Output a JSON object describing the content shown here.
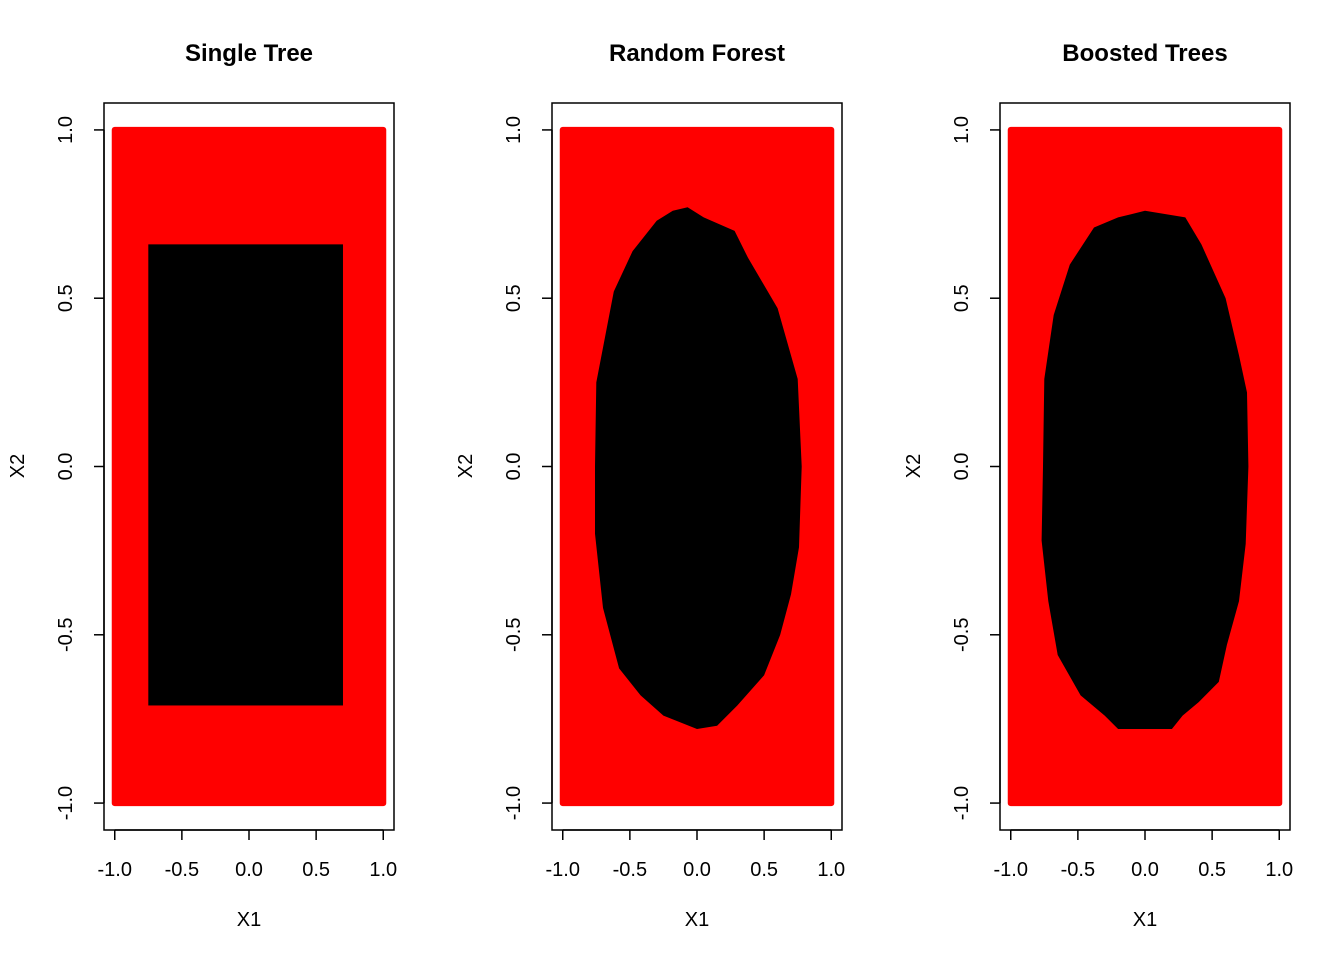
{
  "colors": {
    "class_outside": "#ff0000",
    "class_inside": "#000000",
    "background": "#ffffff"
  },
  "chart_data": [
    {
      "type": "heatmap",
      "title": "Single Tree",
      "xlabel": "X1",
      "ylabel": "X2",
      "xlim": [
        -1.0,
        1.0
      ],
      "ylim": [
        -1.0,
        1.0
      ],
      "xticks": [
        "-1.0",
        "-0.5",
        "0.0",
        "0.5",
        "1.0"
      ],
      "yticks": [
        "-1.0",
        "-0.5",
        "0.0",
        "0.5",
        "1.0"
      ],
      "grid": false,
      "legend": "none",
      "inside_region": {
        "shape": "rectangle",
        "x_range": [
          -0.75,
          0.7
        ],
        "y_range": [
          -0.71,
          0.66
        ]
      }
    },
    {
      "type": "heatmap",
      "title": "Random Forest",
      "xlabel": "X1",
      "ylabel": "X2",
      "xlim": [
        -1.0,
        1.0
      ],
      "ylim": [
        -1.0,
        1.0
      ],
      "xticks": [
        "-1.0",
        "-0.5",
        "0.0",
        "0.5",
        "1.0"
      ],
      "yticks": [
        "-1.0",
        "-0.5",
        "0.0",
        "0.5",
        "1.0"
      ],
      "grid": false,
      "legend": "none",
      "inside_region": {
        "shape": "boundary",
        "points": [
          [
            -0.07,
            0.77
          ],
          [
            0.05,
            0.74
          ],
          [
            0.28,
            0.7
          ],
          [
            0.38,
            0.62
          ],
          [
            0.6,
            0.47
          ],
          [
            0.75,
            0.26
          ],
          [
            0.78,
            0.0
          ],
          [
            0.76,
            -0.24
          ],
          [
            0.7,
            -0.38
          ],
          [
            0.62,
            -0.5
          ],
          [
            0.5,
            -0.62
          ],
          [
            0.3,
            -0.71
          ],
          [
            0.15,
            -0.77
          ],
          [
            0.0,
            -0.78
          ],
          [
            -0.25,
            -0.74
          ],
          [
            -0.42,
            -0.68
          ],
          [
            -0.58,
            -0.6
          ],
          [
            -0.7,
            -0.42
          ],
          [
            -0.76,
            -0.2
          ],
          [
            -0.76,
            0.0
          ],
          [
            -0.75,
            0.25
          ],
          [
            -0.62,
            0.52
          ],
          [
            -0.48,
            0.64
          ],
          [
            -0.3,
            0.73
          ],
          [
            -0.18,
            0.76
          ]
        ]
      }
    },
    {
      "type": "heatmap",
      "title": "Boosted Trees",
      "xlabel": "X1",
      "ylabel": "X2",
      "xlim": [
        -1.0,
        1.0
      ],
      "ylim": [
        -1.0,
        1.0
      ],
      "xticks": [
        "-1.0",
        "-0.5",
        "0.0",
        "0.5",
        "1.0"
      ],
      "yticks": [
        "-1.0",
        "-0.5",
        "0.0",
        "0.5",
        "1.0"
      ],
      "grid": false,
      "legend": "none",
      "inside_region": {
        "shape": "boundary",
        "points": [
          [
            0.0,
            0.76
          ],
          [
            0.3,
            0.74
          ],
          [
            0.42,
            0.66
          ],
          [
            0.6,
            0.5
          ],
          [
            0.7,
            0.33
          ],
          [
            0.76,
            0.22
          ],
          [
            0.77,
            0.0
          ],
          [
            0.75,
            -0.23
          ],
          [
            0.7,
            -0.4
          ],
          [
            0.61,
            -0.53
          ],
          [
            0.55,
            -0.64
          ],
          [
            0.4,
            -0.7
          ],
          [
            0.28,
            -0.74
          ],
          [
            0.2,
            -0.78
          ],
          [
            -0.2,
            -0.78
          ],
          [
            -0.3,
            -0.74
          ],
          [
            -0.48,
            -0.68
          ],
          [
            -0.65,
            -0.56
          ],
          [
            -0.72,
            -0.4
          ],
          [
            -0.77,
            -0.22
          ],
          [
            -0.76,
            0.0
          ],
          [
            -0.75,
            0.26
          ],
          [
            -0.68,
            0.45
          ],
          [
            -0.56,
            0.6
          ],
          [
            -0.38,
            0.71
          ],
          [
            -0.2,
            0.74
          ],
          [
            -0.1,
            0.75
          ]
        ]
      }
    }
  ]
}
